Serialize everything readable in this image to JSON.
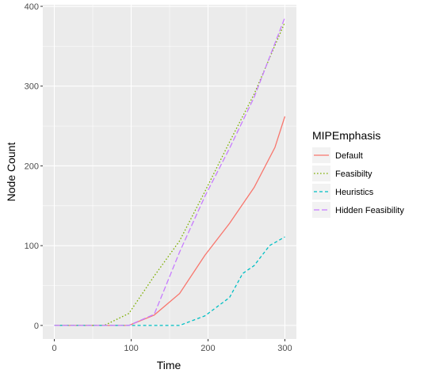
{
  "chart_data": {
    "type": "line",
    "title": "",
    "xlabel": "Time",
    "ylabel": "Node Count",
    "xlim": [
      -15,
      315
    ],
    "ylim": [
      -17,
      402
    ],
    "x_ticks": [
      0,
      100,
      200,
      300
    ],
    "y_ticks": [
      0,
      100,
      200,
      300,
      400
    ],
    "grid": true,
    "legend": {
      "title": "MIPEmphasis",
      "position": "right"
    },
    "series": [
      {
        "name": "Default",
        "color": "#F8766D",
        "dash": "solid",
        "x": [
          0,
          97,
          130,
          163,
          196,
          228,
          260,
          287,
          300
        ],
        "y": [
          0,
          0,
          13,
          40,
          88,
          128,
          173,
          223,
          262
        ]
      },
      {
        "name": "Feasibilty",
        "color": "#7CAE00",
        "dash": "dotted",
        "x": [
          0,
          65,
          97,
          130,
          163,
          196,
          228,
          260,
          300
        ],
        "y": [
          0,
          0,
          15,
          62,
          106,
          168,
          230,
          290,
          380
        ]
      },
      {
        "name": "Heuristics",
        "color": "#00BFC4",
        "dash": "dashed",
        "x": [
          0,
          163,
          196,
          228,
          245,
          260,
          280,
          300
        ],
        "y": [
          0,
          0,
          12,
          35,
          65,
          75,
          100,
          111
        ]
      },
      {
        "name": "Hidden Feasibility",
        "color": "#C77CFF",
        "dash": "longdash",
        "x": [
          0,
          97,
          130,
          163,
          196,
          228,
          260,
          300
        ],
        "y": [
          0,
          0,
          14,
          92,
          162,
          222,
          286,
          386
        ]
      }
    ]
  }
}
